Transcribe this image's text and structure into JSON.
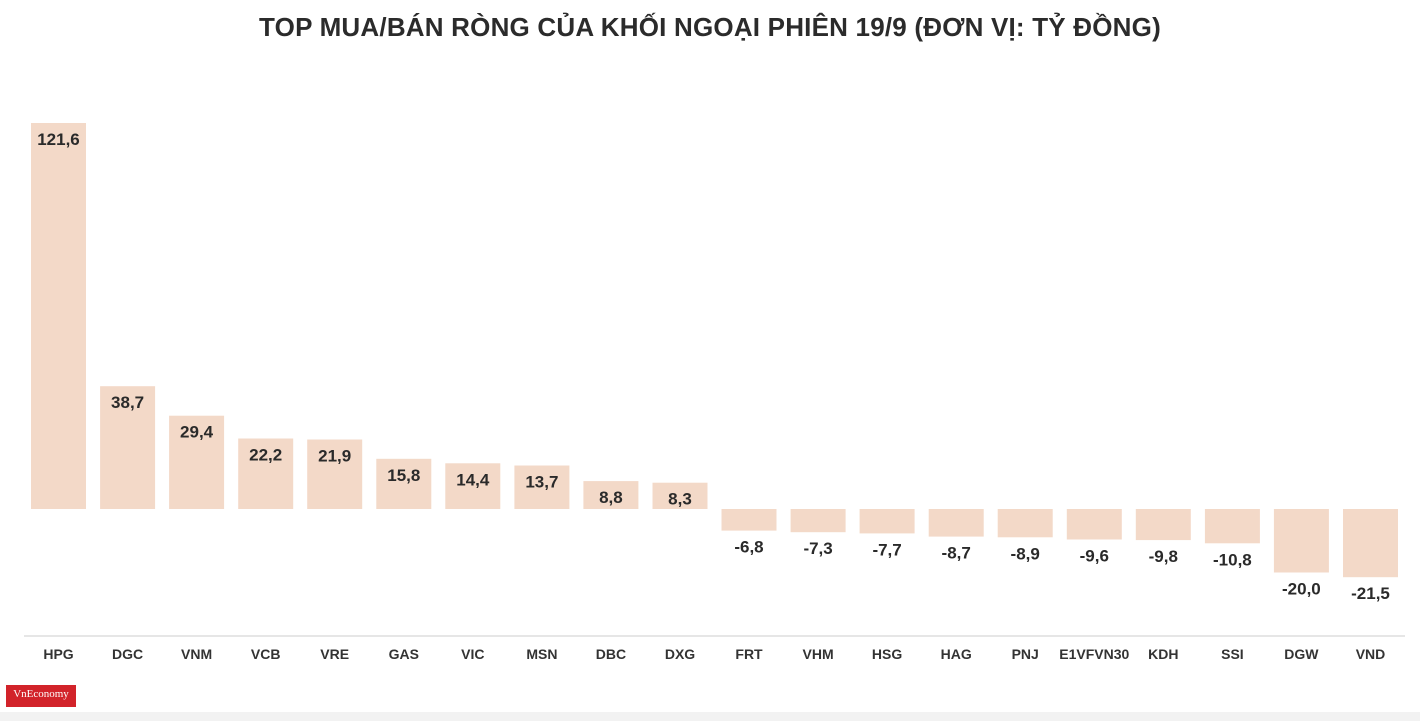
{
  "chart_data": {
    "type": "bar",
    "title": "TOP MUA/BÁN RÒNG CỦA KHỐI NGOẠI PHIÊN 19/9 (ĐƠN VỊ: TỶ ĐỒNG)",
    "xlabel": "",
    "ylabel": "",
    "categories": [
      "HPG",
      "DGC",
      "VNM",
      "VCB",
      "VRE",
      "GAS",
      "VIC",
      "MSN",
      "DBC",
      "DXG",
      "FRT",
      "VHM",
      "HSG",
      "HAG",
      "PNJ",
      "E1VFVN30",
      "KDH",
      "SSI",
      "DGW",
      "VND"
    ],
    "values": [
      121.6,
      38.7,
      29.4,
      22.2,
      21.9,
      15.8,
      14.4,
      13.7,
      8.8,
      8.3,
      -6.8,
      -7.3,
      -7.7,
      -8.7,
      -8.9,
      -9.6,
      -9.8,
      -10.8,
      -20.0,
      -21.5
    ],
    "value_labels": [
      "121,6",
      "38,7",
      "29,4",
      "22,2",
      "21,9",
      "15,8",
      "14,4",
      "13,7",
      "8,8",
      "8,3",
      "-6,8",
      "-7,3",
      "-7,7",
      "-8,7",
      "-8,9",
      "-9,6",
      "-9,8",
      "-10,8",
      "-20,0",
      "-21,5"
    ],
    "ylim": [
      -40,
      121.6
    ],
    "grid": false,
    "legend": "none",
    "bar_color": "#f3d9c8",
    "axis_color": "#cccccc"
  },
  "logo": {
    "text": "VnEconomy"
  }
}
